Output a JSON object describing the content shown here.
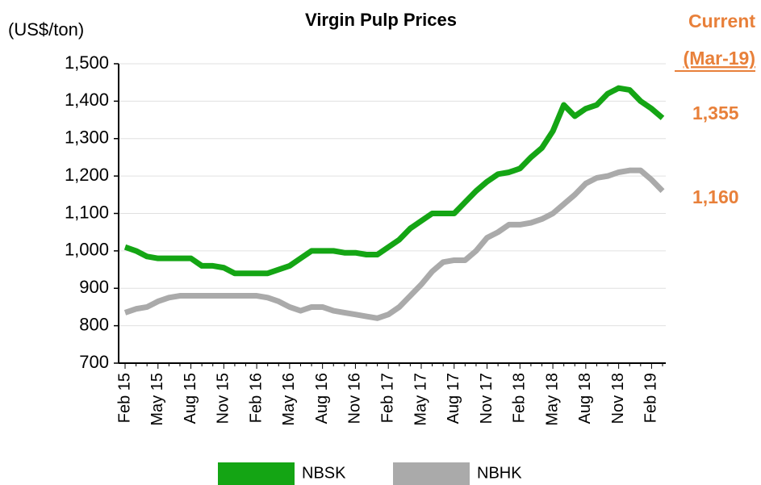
{
  "chart_data": {
    "type": "line",
    "title": "Virgin Pulp Prices",
    "y_label": "(US$/ton)",
    "annotations": [
      "Current",
      "(Mar-19)",
      "1,355",
      "1,160"
    ],
    "categories": [
      "Feb 15",
      null,
      null,
      "May 15",
      null,
      null,
      "Aug 15",
      null,
      null,
      "Nov 15",
      null,
      null,
      "Feb 16",
      null,
      null,
      "May 16",
      null,
      null,
      "Aug 16",
      null,
      null,
      "Nov 16",
      null,
      null,
      "Feb 17",
      null,
      null,
      "May 17",
      null,
      null,
      "Aug 17",
      null,
      null,
      "Nov 17",
      null,
      null,
      "Feb 18",
      null,
      null,
      "May 18",
      null,
      null,
      "Aug 18",
      null,
      null,
      "Nov 18",
      null,
      null,
      "Feb 19",
      null
    ],
    "series": [
      {
        "name": "NBSK",
        "color": "#14a514",
        "values": [
          1010,
          1000,
          985,
          980,
          980,
          980,
          980,
          960,
          960,
          955,
          940,
          940,
          940,
          940,
          950,
          960,
          980,
          1000,
          1000,
          1000,
          995,
          995,
          990,
          990,
          1010,
          1030,
          1060,
          1080,
          1100,
          1100,
          1100,
          1130,
          1160,
          1185,
          1205,
          1210,
          1220,
          1250,
          1275,
          1320,
          1390,
          1360,
          1380,
          1390,
          1420,
          1435,
          1430,
          1400,
          1380,
          1355
        ]
      },
      {
        "name": "NBHK",
        "color": "#aaaaaa",
        "values": [
          835,
          845,
          850,
          865,
          875,
          880,
          880,
          880,
          880,
          880,
          880,
          880,
          880,
          875,
          865,
          850,
          840,
          850,
          850,
          840,
          835,
          830,
          825,
          820,
          830,
          850,
          880,
          910,
          945,
          970,
          975,
          975,
          1000,
          1035,
          1050,
          1070,
          1070,
          1075,
          1085,
          1100,
          1125,
          1150,
          1180,
          1195,
          1200,
          1210,
          1215,
          1215,
          1190,
          1160
        ]
      }
    ],
    "ylim": [
      700,
      1500
    ],
    "yticks": [
      700,
      800,
      900,
      {
        "value": 1000,
        "label": "1,000"
      },
      {
        "value": 1100,
        "label": "1,100"
      },
      {
        "value": 1200,
        "label": "1,200"
      },
      {
        "value": 1300,
        "label": "1,300"
      },
      {
        "value": 1400,
        "label": "1,400"
      },
      {
        "value": 1500,
        "label": "1,500"
      }
    ],
    "grid": true,
    "legend": "bottom"
  }
}
